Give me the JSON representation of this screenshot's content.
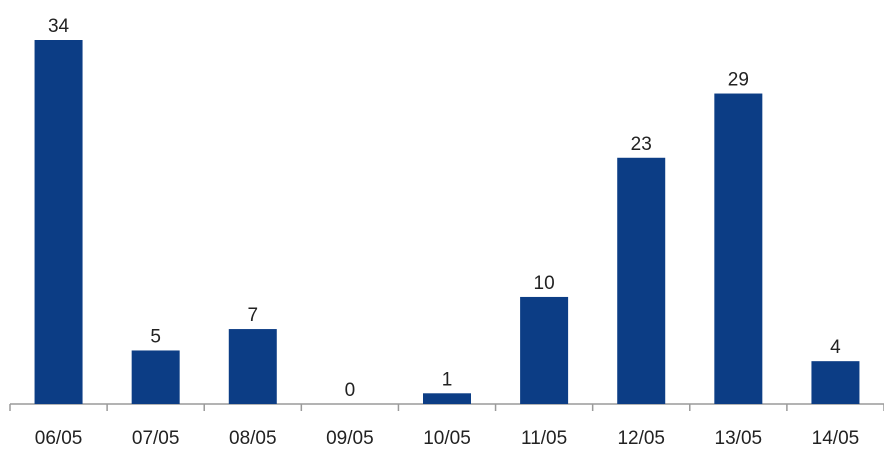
{
  "chart_data": {
    "type": "bar",
    "categories": [
      "06/05",
      "07/05",
      "08/05",
      "09/05",
      "10/05",
      "11/05",
      "12/05",
      "13/05",
      "14/05"
    ],
    "values": [
      34,
      5,
      7,
      0,
      1,
      10,
      23,
      29,
      4
    ],
    "show_data_labels": true,
    "bar_color": "#0c3d85",
    "grid": false,
    "legend": "none",
    "ylim": [
      0,
      34
    ]
  }
}
